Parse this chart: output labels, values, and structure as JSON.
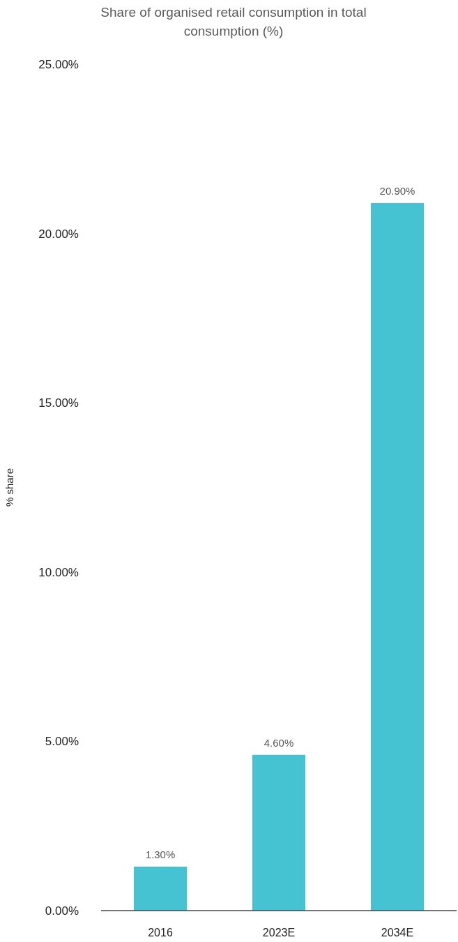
{
  "chart_data": {
    "type": "bar",
    "title": "Share of organised retail consumption in total consumption (%)",
    "ylabel": "% share",
    "categories": [
      "2016",
      "2023E",
      "2034E"
    ],
    "values": [
      1.3,
      4.6,
      20.9
    ],
    "value_labels": [
      "1.30%",
      "4.60%",
      "20.90%"
    ],
    "color": "#45c3d3",
    "ylim": [
      0,
      25
    ],
    "yticks": [
      {
        "value": 0,
        "label": "0.00%"
      },
      {
        "value": 5,
        "label": "5.00%"
      },
      {
        "value": 10,
        "label": "10.00%"
      },
      {
        "value": 15,
        "label": "15.00%"
      },
      {
        "value": 20,
        "label": "20.00%"
      },
      {
        "value": 25,
        "label": "25.00%"
      }
    ]
  }
}
